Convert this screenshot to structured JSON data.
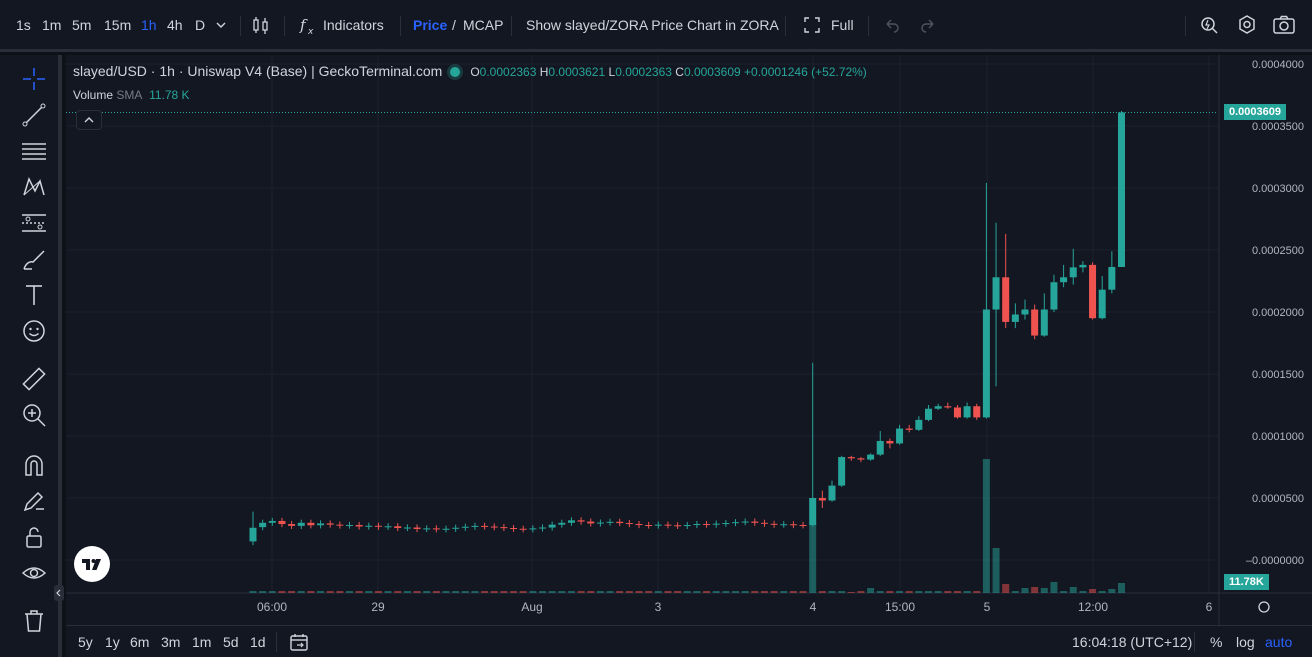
{
  "toolbar": {
    "timeframes": [
      "1s",
      "1m",
      "5m",
      "15m",
      "1h",
      "4h",
      "D"
    ],
    "active_timeframe": "1h",
    "indicators_label": "Indicators",
    "price_label": "Price",
    "slash": "/",
    "mcap_label": "MCAP",
    "show_chart_label": "Show slayed/ZORA Price Chart in ZORA",
    "full_label": "Full"
  },
  "legend": {
    "title": "slayed/USD · 1h · Uniswap V4 (Base) | GeckoTerminal.com",
    "o_label": "O",
    "o_value": "0.0002363",
    "h_label": "H",
    "h_value": "0.0003621",
    "l_label": "L",
    "l_value": "0.0002363",
    "c_label": "C",
    "c_value": "0.0003609",
    "change": "+0.0001246 (+52.72%)",
    "volume_label": "Volume",
    "volume_ma": "SMA",
    "volume_value": "11.78 K"
  },
  "price_axis": {
    "ticks": [
      "0.0004000",
      "0.0003500",
      "0.0003000",
      "0.0002500",
      "0.0002000",
      "0.0001500",
      "0.0001000",
      "0.0000500",
      "–0.0000000"
    ],
    "current_price_tag": "0.0003609",
    "volume_tag": "11.78K"
  },
  "time_axis": {
    "ticks": [
      "06:00",
      "29",
      "Aug",
      "3",
      "4",
      "15:00",
      "5",
      "12:00",
      "6"
    ]
  },
  "bottom": {
    "ranges": [
      "5y",
      "1y",
      "6m",
      "3m",
      "1m",
      "5d",
      "1d"
    ],
    "clock": "16:04:18 (UTC+12)",
    "percent": "%",
    "log": "log",
    "auto": "auto"
  },
  "colors": {
    "up": "#26a69a",
    "down": "#ef5350",
    "background": "#131722",
    "grid": "#1e222d",
    "accent": "#2962ff"
  },
  "chart_data": {
    "type": "candlestick",
    "title": "slayed/USD · 1h · Uniswap V4 (Base) | GeckoTerminal.com",
    "ylim": [
      -3e-05,
      0.0004
    ],
    "x_ticks": [
      "06:00",
      "29",
      "Aug",
      "3",
      "4",
      "15:00",
      "5",
      "12:00",
      "6"
    ],
    "last": {
      "o": 0.0002363,
      "h": 0.0003621,
      "l": 0.0002363,
      "c": 0.0003609
    },
    "volume_last": "11.78K"
  }
}
